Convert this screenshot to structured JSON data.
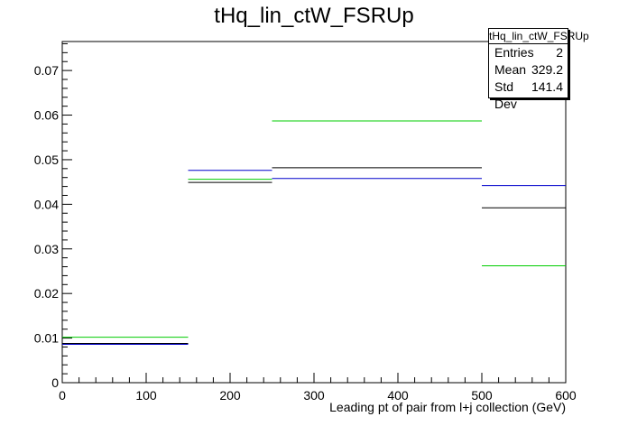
{
  "title": "tHq_lin_ctW_FSRUp",
  "stats": {
    "name": "tHq_lin_ctW_FSRUp",
    "rows": [
      {
        "label": "Entries",
        "value": "2"
      },
      {
        "label": "Mean",
        "value": "329.2"
      },
      {
        "label": "Std Dev",
        "value": "141.4"
      }
    ]
  },
  "chart_data": {
    "type": "line",
    "title": "tHq_lin_ctW_FSRUp",
    "xlabel": "Leading pt of pair from l+j collection (GeV)",
    "ylabel": "",
    "xlim": [
      0,
      600
    ],
    "ylim": [
      0,
      0.0765
    ],
    "grid": false,
    "bin_edges": [
      0,
      150,
      250,
      500,
      600
    ],
    "x_ticks": [
      0,
      100,
      200,
      300,
      400,
      500,
      600
    ],
    "y_ticks": [
      0,
      0.01,
      0.02,
      0.03,
      0.04,
      0.05,
      0.06,
      0.07
    ],
    "series": [
      {
        "color": "#000000",
        "values": [
          0.0088,
          0.0449,
          0.0482,
          0.0392
        ]
      },
      {
        "color": "#0000cc",
        "values": [
          0.0086,
          0.0476,
          0.0458,
          0.0442
        ]
      },
      {
        "color": "#00cc00",
        "values": [
          0.0102,
          0.0456,
          0.0587,
          0.0262
        ]
      }
    ]
  }
}
